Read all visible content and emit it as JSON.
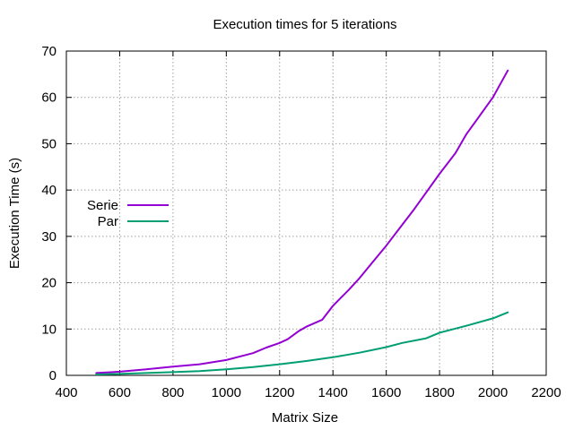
{
  "chart_data": {
    "type": "line",
    "title": "Execution times for 5 iterations",
    "xlabel": "Matrix Size",
    "ylabel": "Execution Time (s)",
    "xlim": [
      400,
      2200
    ],
    "ylim": [
      0,
      70
    ],
    "x_ticks": [
      "400",
      "600",
      "800",
      "1000",
      "1200",
      "1400",
      "1600",
      "1800",
      "2000",
      "2200"
    ],
    "y_ticks": [
      "0",
      "10",
      "20",
      "30",
      "40",
      "50",
      "60",
      "70"
    ],
    "grid": true,
    "legend_position": "left",
    "series": [
      {
        "name": "Serie",
        "color": "#9400d3",
        "x": [
          512,
          600,
          700,
          800,
          900,
          1000,
          1100,
          1150,
          1200,
          1230,
          1270,
          1300,
          1360,
          1400,
          1460,
          1500,
          1550,
          1600,
          1660,
          1700,
          1750,
          1800,
          1860,
          1900,
          1950,
          2000,
          2056
        ],
        "y": [
          0.5,
          0.8,
          1.3,
          1.9,
          2.4,
          3.3,
          4.8,
          6.0,
          7.0,
          7.8,
          9.5,
          10.5,
          12.0,
          15.0,
          18.5,
          21.0,
          24.5,
          28.0,
          32.5,
          35.5,
          39.5,
          43.5,
          48.0,
          52.0,
          56.0,
          60.0,
          65.8
        ]
      },
      {
        "name": "Par",
        "color": "#009e73",
        "x": [
          512,
          600,
          700,
          800,
          900,
          1000,
          1100,
          1200,
          1300,
          1400,
          1500,
          1600,
          1660,
          1750,
          1800,
          1900,
          2000,
          2056
        ],
        "y": [
          0.2,
          0.3,
          0.5,
          0.7,
          0.9,
          1.3,
          1.8,
          2.4,
          3.1,
          3.9,
          4.9,
          6.1,
          7.0,
          8.0,
          9.2,
          10.7,
          12.3,
          13.6
        ]
      }
    ]
  }
}
